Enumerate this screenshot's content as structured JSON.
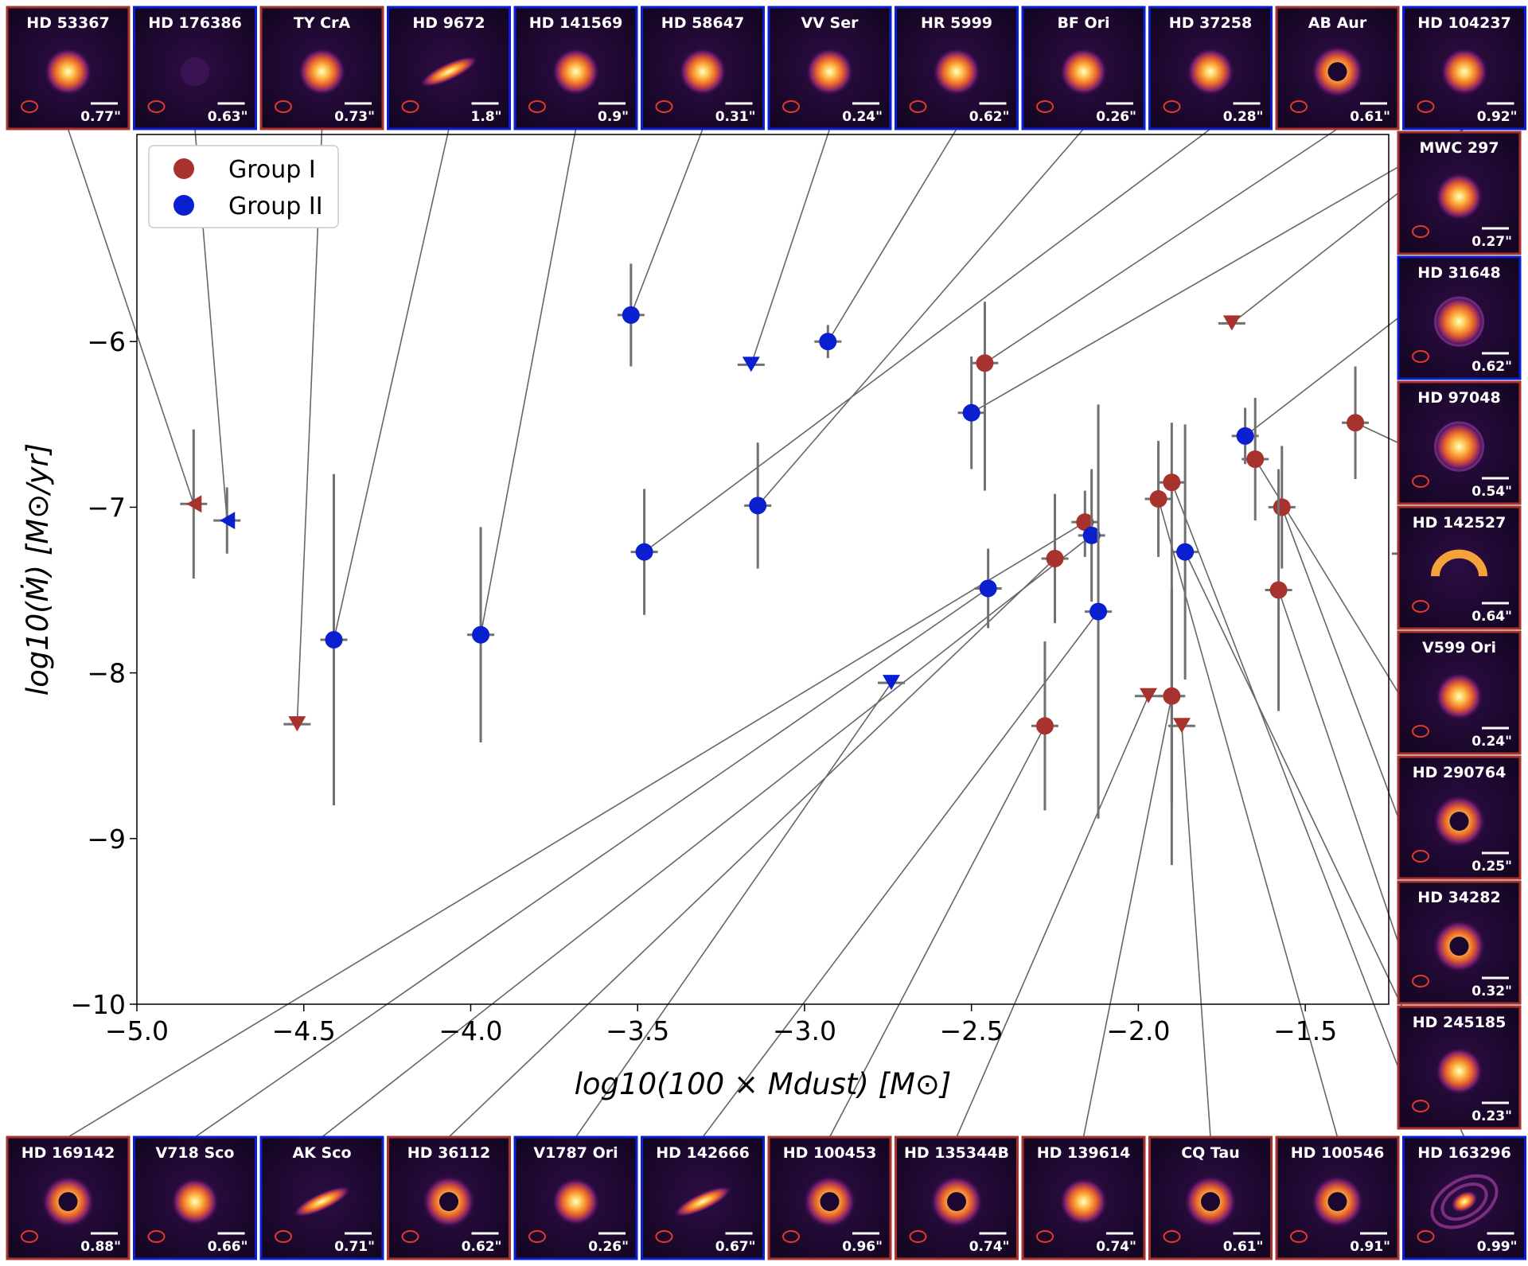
{
  "chart_data": {
    "type": "scatter",
    "xlabel": "log10(100 × Mdust) [M⊙]",
    "ylabel": "log10(Ṁ) [M⊙/yr]",
    "xlim": [
      -5.0,
      -1.25
    ],
    "ylim": [
      -10.0,
      -4.75
    ],
    "x_ticks": [
      {
        "value": -5.0,
        "label": "−5.0"
      },
      {
        "value": -4.5,
        "label": "−4.5"
      },
      {
        "value": -4.0,
        "label": "−4.0"
      },
      {
        "value": -3.5,
        "label": "−3.5"
      },
      {
        "value": -3.0,
        "label": "−3.0"
      },
      {
        "value": -2.5,
        "label": "−2.5"
      },
      {
        "value": -2.0,
        "label": "−2.0"
      },
      {
        "value": -1.5,
        "label": "−1.5"
      }
    ],
    "y_ticks": [
      {
        "value": -6,
        "label": "−6"
      },
      {
        "value": -7,
        "label": "−7"
      },
      {
        "value": -8,
        "label": "−8"
      },
      {
        "value": -9,
        "label": "−9"
      },
      {
        "value": -10,
        "label": "−10"
      }
    ],
    "grid": false,
    "legend_position": "top-left",
    "colors": {
      "group_i": "#a8322d",
      "group_ii": "#0a1fd0",
      "errorbar": "#707070",
      "connector": "#666666"
    },
    "series": [
      {
        "name": "Group I",
        "points": [
          {
            "x": -4.83,
            "y": -6.98,
            "yerr": [
              0.45,
              0.45
            ],
            "marker": "left-triangle"
          },
          {
            "x": -4.52,
            "y": -8.31,
            "marker": "down-triangle"
          },
          {
            "x": -2.46,
            "y": -6.13,
            "yerr": [
              0.37,
              0.77
            ]
          },
          {
            "x": -2.16,
            "y": -7.09,
            "yerr": [
              0.19,
              0.21
            ]
          },
          {
            "x": -2.25,
            "y": -7.31,
            "yerr": [
              0.39,
              0.39
            ]
          },
          {
            "x": -2.28,
            "y": -8.32,
            "yerr": [
              0.51,
              0.51
            ]
          },
          {
            "x": -1.94,
            "y": -6.95,
            "yerr": [
              0.35,
              0.35
            ]
          },
          {
            "x": -1.9,
            "y": -6.85,
            "yerr": [
              0.36,
              2.31
            ]
          },
          {
            "x": -1.9,
            "y": -8.14,
            "yerr": [
              0.65,
              0.65
            ]
          },
          {
            "x": -1.97,
            "y": -8.14,
            "marker": "down-triangle"
          },
          {
            "x": -1.87,
            "y": -8.32,
            "marker": "down-triangle"
          },
          {
            "x": -1.72,
            "y": -5.89,
            "marker": "down-triangle"
          },
          {
            "x": -1.65,
            "y": -6.71,
            "yerr": [
              0.37,
              0.37
            ]
          },
          {
            "x": -1.57,
            "y": -7.0,
            "yerr": [
              0.37,
              0.37
            ]
          },
          {
            "x": -1.58,
            "y": -7.5,
            "yerr": [
              0.73,
              0.73
            ]
          },
          {
            "x": -1.35,
            "y": -6.49,
            "yerr": [
              0.34,
              0.34
            ]
          },
          {
            "x": -1.2,
            "y": -7.28,
            "marker": "down-triangle"
          }
        ]
      },
      {
        "name": "Group II",
        "points": [
          {
            "x": -4.73,
            "y": -7.08,
            "yerr": [
              0.2,
              0.2
            ],
            "marker": "left-triangle"
          },
          {
            "x": -4.41,
            "y": -7.8,
            "yerr": [
              1.0,
              1.0
            ]
          },
          {
            "x": -3.97,
            "y": -7.77,
            "yerr": [
              0.65,
              0.65
            ]
          },
          {
            "x": -3.52,
            "y": -5.84,
            "yerr": [
              0.31,
              0.31
            ]
          },
          {
            "x": -3.48,
            "y": -7.27,
            "yerr": [
              0.38,
              0.38
            ]
          },
          {
            "x": -3.16,
            "y": -6.14,
            "marker": "down-triangle"
          },
          {
            "x": -3.14,
            "y": -6.99,
            "yerr": [
              0.38,
              0.38
            ]
          },
          {
            "x": -2.93,
            "y": -6.0,
            "yerr": [
              0.1,
              0.1
            ]
          },
          {
            "x": -2.74,
            "y": -8.06,
            "marker": "down-triangle"
          },
          {
            "x": -2.5,
            "y": -6.43,
            "yerr": [
              0.34,
              0.34
            ]
          },
          {
            "x": -2.45,
            "y": -7.49,
            "yerr": [
              0.24,
              0.24
            ]
          },
          {
            "x": -2.14,
            "y": -7.17,
            "yerr": [
              0.4,
              0.4
            ]
          },
          {
            "x": -2.12,
            "y": -7.63,
            "yerr": [
              1.25,
              1.25
            ]
          },
          {
            "x": -1.86,
            "y": -7.27,
            "yerr": [
              0.77,
              0.77
            ]
          },
          {
            "x": -1.68,
            "y": -6.57,
            "yerr": [
              0.17,
              0.17
            ]
          }
        ]
      }
    ]
  },
  "thumbnails": {
    "top": [
      {
        "name": "HD 53367",
        "scale": "0.77\"",
        "group": "I",
        "shape": "blob",
        "target": [
          -4.83,
          -6.98
        ]
      },
      {
        "name": "HD 176386",
        "scale": "0.63\"",
        "group": "II",
        "shape": "faint",
        "target": [
          -4.73,
          -7.08
        ]
      },
      {
        "name": "TY CrA",
        "scale": "0.73\"",
        "group": "I",
        "shape": "blob",
        "target": [
          -4.52,
          -8.31
        ]
      },
      {
        "name": "HD 9672",
        "scale": "1.8\"",
        "group": "II",
        "shape": "edge",
        "target": [
          -4.41,
          -7.8
        ]
      },
      {
        "name": "HD 141569",
        "scale": "0.9\"",
        "group": "II",
        "shape": "blob",
        "target": [
          -3.97,
          -7.77
        ]
      },
      {
        "name": "HD 58647",
        "scale": "0.31\"",
        "group": "II",
        "shape": "blob",
        "target": [
          -3.52,
          -5.84
        ]
      },
      {
        "name": "VV Ser",
        "scale": "0.24\"",
        "group": "II",
        "shape": "blob",
        "target": [
          -3.16,
          -6.14
        ]
      },
      {
        "name": "HR 5999",
        "scale": "0.62\"",
        "group": "II",
        "shape": "blob",
        "target": [
          -2.93,
          -6.0
        ]
      },
      {
        "name": "BF Ori",
        "scale": "0.26\"",
        "group": "II",
        "shape": "blob",
        "target": [
          -3.14,
          -6.99
        ]
      },
      {
        "name": "HD 37258",
        "scale": "0.28\"",
        "group": "II",
        "shape": "blob",
        "target": [
          -3.48,
          -7.27
        ]
      },
      {
        "name": "AB Aur",
        "scale": "0.61\"",
        "group": "I",
        "shape": "ring",
        "target": [
          -2.46,
          -6.13
        ]
      },
      {
        "name": "HD 104237",
        "scale": "0.92\"",
        "group": "II",
        "shape": "blob",
        "target": [
          -2.5,
          -6.43
        ]
      }
    ],
    "right": [
      {
        "name": "MWC 297",
        "scale": "0.27\"",
        "group": "I",
        "shape": "blob",
        "target": [
          -1.72,
          -5.89
        ]
      },
      {
        "name": "HD 31648",
        "scale": "0.62\"",
        "group": "II",
        "shape": "ringblob",
        "target": [
          -1.68,
          -6.57
        ]
      },
      {
        "name": "HD 97048",
        "scale": "0.54\"",
        "group": "I",
        "shape": "ringblob",
        "target": [
          -1.35,
          -6.49
        ]
      },
      {
        "name": "HD 142527",
        "scale": "0.64\"",
        "group": "I",
        "shape": "crescent",
        "target": [
          -1.2,
          -7.28
        ]
      },
      {
        "name": "V599 Ori",
        "scale": "0.24\"",
        "group": "I",
        "shape": "blob",
        "target": [
          -1.65,
          -6.71
        ]
      },
      {
        "name": "HD 290764",
        "scale": "0.25\"",
        "group": "I",
        "shape": "ring",
        "target": [
          -1.57,
          -7.0
        ]
      },
      {
        "name": "HD 34282",
        "scale": "0.32\"",
        "group": "I",
        "shape": "ring",
        "target": [
          -1.58,
          -7.5
        ]
      },
      {
        "name": "HD 245185",
        "scale": "0.23\"",
        "group": "I",
        "shape": "blob",
        "target": [
          -1.9,
          -6.85
        ]
      }
    ],
    "bottom": [
      {
        "name": "HD 169142",
        "scale": "0.88\"",
        "group": "I",
        "shape": "ring",
        "target": [
          -2.16,
          -7.09
        ]
      },
      {
        "name": "V718 Sco",
        "scale": "0.66\"",
        "group": "II",
        "shape": "blob",
        "target": [
          -2.45,
          -7.49
        ]
      },
      {
        "name": "AK Sco",
        "scale": "0.71\"",
        "group": "II",
        "shape": "edge",
        "target": [
          -2.14,
          -7.17
        ]
      },
      {
        "name": "HD 36112",
        "scale": "0.62\"",
        "group": "I",
        "shape": "ring",
        "target": [
          -2.25,
          -7.31
        ]
      },
      {
        "name": "V1787 Ori",
        "scale": "0.26\"",
        "group": "II",
        "shape": "blob",
        "target": [
          -2.74,
          -8.06
        ]
      },
      {
        "name": "HD 142666",
        "scale": "0.67\"",
        "group": "II",
        "shape": "edge",
        "target": [
          -2.12,
          -7.63
        ]
      },
      {
        "name": "HD 100453",
        "scale": "0.96\"",
        "group": "I",
        "shape": "ring",
        "target": [
          -2.28,
          -8.32
        ]
      },
      {
        "name": "HD 135344B",
        "scale": "0.74\"",
        "group": "I",
        "shape": "ring",
        "target": [
          -1.97,
          -8.14
        ]
      },
      {
        "name": "HD 139614",
        "scale": "0.74\"",
        "group": "I",
        "shape": "blob",
        "target": [
          -1.9,
          -8.14
        ]
      },
      {
        "name": "CQ Tau",
        "scale": "0.61\"",
        "group": "I",
        "shape": "ring",
        "target": [
          -1.87,
          -8.32
        ]
      },
      {
        "name": "HD 100546",
        "scale": "0.91\"",
        "group": "I",
        "shape": "ring",
        "target": [
          -1.94,
          -6.95
        ]
      },
      {
        "name": "HD 163296",
        "scale": "0.99\"",
        "group": "II",
        "shape": "multiring",
        "target": [
          -1.86,
          -7.27
        ]
      }
    ]
  }
}
